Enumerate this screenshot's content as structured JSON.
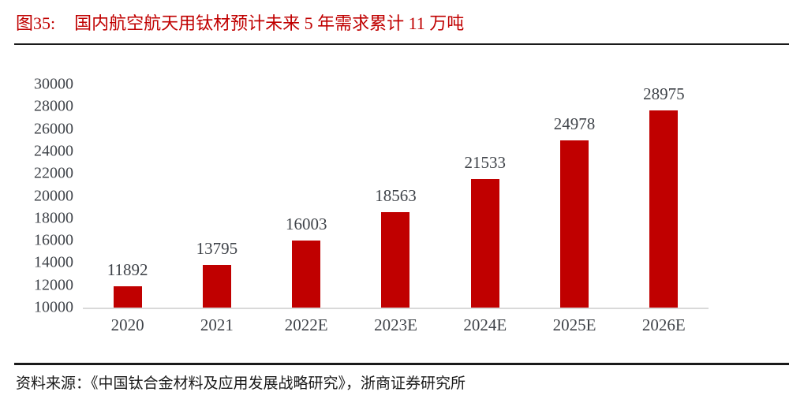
{
  "title": {
    "label": "图35:",
    "text": "国内航空航天用钛材预计未来 5 年需求累计 11 万吨"
  },
  "source": "资料来源：《中国钛合金材料及应用发展战略研究》，浙商证券研究所",
  "colors": {
    "accent": "#c00000",
    "axis_text": "#3f4349",
    "axis_line": "#d9d9d9",
    "rule": "#1a1a1a"
  },
  "chart_data": {
    "type": "bar",
    "categories": [
      "2020",
      "2021",
      "2022E",
      "2023E",
      "2024E",
      "2025E",
      "2026E"
    ],
    "values": [
      11892,
      13795,
      16003,
      18563,
      21533,
      24978,
      28975
    ],
    "title": "国内航空航天用钛材预计未来 5 年需求累计 11 万吨",
    "xlabel": "",
    "ylabel": "",
    "ylim": [
      10000,
      30000
    ],
    "yticks": [
      10000,
      12000,
      14000,
      16000,
      18000,
      20000,
      22000,
      24000,
      26000,
      28000,
      30000
    ],
    "grid": false,
    "legend": "none",
    "bar_color": "#c00000",
    "data_labels": true
  }
}
